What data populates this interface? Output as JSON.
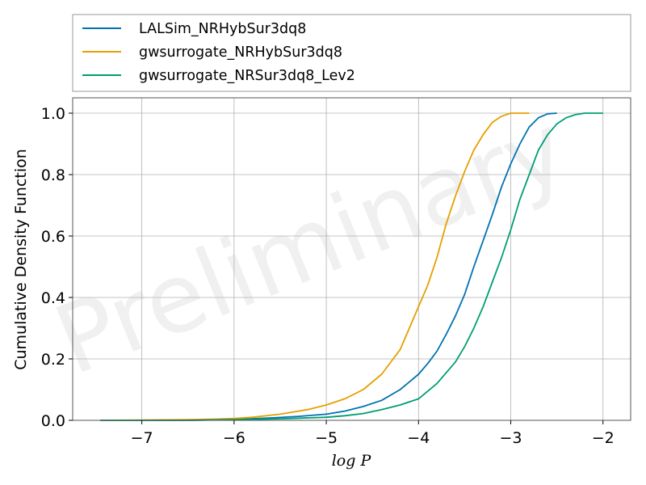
{
  "chart_data": {
    "type": "line",
    "xlabel": "log P",
    "ylabel": "Cumulative Density Function",
    "xlim": [
      -7.75,
      -1.7
    ],
    "ylim": [
      0.0,
      1.05
    ],
    "xticks": [
      -7,
      -6,
      -5,
      -4,
      -3,
      -2
    ],
    "xtick_labels": [
      "−7",
      "−6",
      "−5",
      "−4",
      "−3",
      "−2"
    ],
    "yticks": [
      0.0,
      0.2,
      0.4,
      0.6,
      0.8,
      1.0
    ],
    "ytick_labels": [
      "0.0",
      "0.2",
      "0.4",
      "0.6",
      "0.8",
      "1.0"
    ],
    "grid": true,
    "legend_position": "above-plot",
    "watermark": "Preliminary",
    "series": [
      {
        "name": "LALSim_NRHybSur3dq8",
        "color": "#0072B2",
        "x": [
          -7.45,
          -7.0,
          -6.5,
          -6.0,
          -5.6,
          -5.3,
          -5.0,
          -4.8,
          -4.6,
          -4.4,
          -4.2,
          -4.0,
          -3.9,
          -3.8,
          -3.7,
          -3.6,
          -3.5,
          -3.4,
          -3.3,
          -3.2,
          -3.1,
          -3.0,
          -2.9,
          -2.8,
          -2.7,
          -2.6,
          -2.5
        ],
        "y": [
          0.0,
          0.0,
          0.0,
          0.003,
          0.008,
          0.013,
          0.02,
          0.03,
          0.045,
          0.065,
          0.1,
          0.15,
          0.185,
          0.225,
          0.28,
          0.34,
          0.41,
          0.5,
          0.585,
          0.67,
          0.76,
          0.835,
          0.9,
          0.955,
          0.985,
          0.998,
          1.0
        ]
      },
      {
        "name": "gwsurrogate_NRHybSur3dq8",
        "color": "#E69F00",
        "x": [
          -7.45,
          -7.0,
          -6.5,
          -6.2,
          -6.0,
          -5.8,
          -5.5,
          -5.2,
          -5.0,
          -4.8,
          -4.6,
          -4.4,
          -4.2,
          -4.1,
          -4.0,
          -3.9,
          -3.8,
          -3.7,
          -3.6,
          -3.5,
          -3.4,
          -3.3,
          -3.2,
          -3.1,
          -3.0,
          -2.9,
          -2.8
        ],
        "y": [
          0.0,
          0.001,
          0.002,
          0.004,
          0.006,
          0.01,
          0.02,
          0.035,
          0.05,
          0.07,
          0.1,
          0.15,
          0.23,
          0.3,
          0.37,
          0.44,
          0.53,
          0.64,
          0.73,
          0.81,
          0.88,
          0.93,
          0.97,
          0.99,
          1.0,
          1.0,
          1.0
        ]
      },
      {
        "name": "gwsurrogate_NRSur3dq8_Lev2",
        "color": "#009E73",
        "x": [
          -7.45,
          -7.0,
          -6.5,
          -6.0,
          -5.5,
          -5.0,
          -4.8,
          -4.6,
          -4.4,
          -4.2,
          -4.0,
          -3.8,
          -3.6,
          -3.5,
          -3.4,
          -3.3,
          -3.2,
          -3.1,
          -3.0,
          -2.9,
          -2.8,
          -2.7,
          -2.6,
          -2.5,
          -2.4,
          -2.3,
          -2.2,
          -2.0
        ],
        "y": [
          0.0,
          0.0,
          0.0,
          0.002,
          0.005,
          0.01,
          0.015,
          0.022,
          0.035,
          0.05,
          0.07,
          0.12,
          0.19,
          0.24,
          0.3,
          0.37,
          0.45,
          0.53,
          0.62,
          0.72,
          0.8,
          0.88,
          0.93,
          0.965,
          0.985,
          0.995,
          1.0,
          1.0
        ]
      }
    ]
  }
}
